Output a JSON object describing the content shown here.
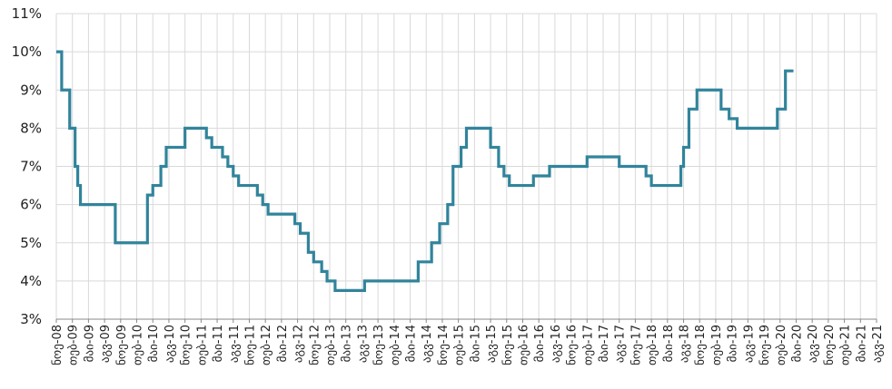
{
  "chart_data": {
    "type": "line",
    "title": "",
    "xlabel": "",
    "ylabel": "",
    "ylim": [
      3,
      11
    ],
    "y_ticks": [
      "3%",
      "4%",
      "5%",
      "6%",
      "7%",
      "8%",
      "9%",
      "10%",
      "11%"
    ],
    "x_ticks": [
      "ნოე-08",
      "თებ-09",
      "მაი-09",
      "აგვ-09",
      "ნოე-09",
      "თებ-10",
      "მაი-10",
      "აგვ-10",
      "ნოე-10",
      "თებ-11",
      "მაი-11",
      "აგვ-11",
      "ნოე-11",
      "თებ-12",
      "მაი-12",
      "აგვ-12",
      "ნოე-12",
      "თებ-13",
      "მაი-13",
      "აგვ-13",
      "ნოე-13",
      "თებ-14",
      "მაი-14",
      "აგვ-14",
      "ნოე-14",
      "თებ-15",
      "მაი-15",
      "აგვ-15",
      "ნოე-15",
      "თებ-16",
      "მაი-16",
      "აგვ-16",
      "ნოე-16",
      "თებ-17",
      "მაი-17",
      "აგვ-17",
      "ნოე-17",
      "თებ-18",
      "მაი-18",
      "აგვ-18",
      "ნოე-18",
      "თებ-19",
      "მაი-19",
      "აგვ-19",
      "ნოე-19",
      "თებ-20",
      "მაი-20",
      "აგვ-20",
      "ნოე-20",
      "თებ-21",
      "მაი-21",
      "აგვ-21"
    ],
    "grid": true,
    "line_style": "step",
    "color": "#31849B",
    "series": [
      {
        "name": "",
        "points": [
          [
            0,
            10
          ],
          [
            1,
            9
          ],
          [
            2.5,
            8
          ],
          [
            3.5,
            7
          ],
          [
            4,
            6.5
          ],
          [
            4.5,
            6
          ],
          [
            11,
            5
          ],
          [
            17,
            6.25
          ],
          [
            18,
            6.5
          ],
          [
            19.5,
            7
          ],
          [
            20.5,
            7.5
          ],
          [
            24,
            8
          ],
          [
            28,
            7.75
          ],
          [
            29,
            7.5
          ],
          [
            31,
            7.25
          ],
          [
            32,
            7
          ],
          [
            33,
            6.75
          ],
          [
            34,
            6.5
          ],
          [
            37.5,
            6.25
          ],
          [
            38.5,
            6
          ],
          [
            39.5,
            5.75
          ],
          [
            44.5,
            5.5
          ],
          [
            45.5,
            5.25
          ],
          [
            47,
            4.75
          ],
          [
            48,
            4.5
          ],
          [
            49.5,
            4.25
          ],
          [
            50.5,
            4
          ],
          [
            52,
            3.75
          ],
          [
            57.5,
            4
          ],
          [
            67.5,
            4.5
          ],
          [
            70,
            5
          ],
          [
            71.5,
            5.5
          ],
          [
            73,
            6
          ],
          [
            74,
            7
          ],
          [
            75.5,
            7.5
          ],
          [
            76.5,
            8
          ],
          [
            81,
            7.5
          ],
          [
            82.5,
            7
          ],
          [
            83.5,
            6.75
          ],
          [
            84.5,
            6.5
          ],
          [
            89,
            6.75
          ],
          [
            92,
            7
          ],
          [
            99,
            7.25
          ],
          [
            105,
            7
          ],
          [
            110,
            6.75
          ],
          [
            111,
            6.5
          ],
          [
            116.5,
            7
          ],
          [
            117,
            7.5
          ],
          [
            118,
            8.5
          ],
          [
            119.5,
            9
          ],
          [
            124,
            8.5
          ],
          [
            125.5,
            8.25
          ],
          [
            127,
            8
          ],
          [
            134.5,
            8.5
          ],
          [
            136,
            9.5
          ],
          [
            137.5,
            9.5
          ]
        ]
      }
    ]
  }
}
